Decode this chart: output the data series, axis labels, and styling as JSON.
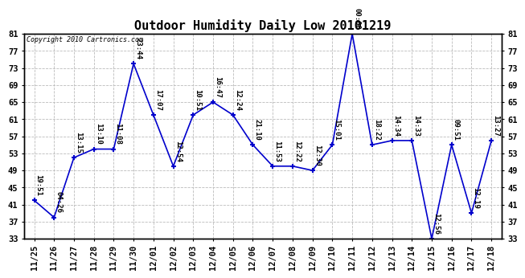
{
  "title": "Outdoor Humidity Daily Low 20101219",
  "copyright": "Copyright 2010 Cartronics.com",
  "x_labels": [
    "11/25",
    "11/26",
    "11/27",
    "11/28",
    "11/29",
    "11/30",
    "12/01",
    "12/02",
    "12/03",
    "12/04",
    "12/05",
    "12/06",
    "12/07",
    "12/08",
    "12/09",
    "12/10",
    "12/11",
    "12/12",
    "12/13",
    "12/14",
    "12/15",
    "12/16",
    "12/17",
    "12/18"
  ],
  "y_values": [
    42,
    38,
    52,
    54,
    54,
    74,
    62,
    50,
    62,
    65,
    62,
    55,
    50,
    50,
    49,
    55,
    81,
    55,
    56,
    56,
    33,
    55,
    39,
    56
  ],
  "point_labels": [
    "19:51",
    "04:26",
    "13:15",
    "13:10",
    "11:08",
    "23:44",
    "17:07",
    "12:54",
    "10:51",
    "16:47",
    "12:24",
    "21:10",
    "11:53",
    "12:22",
    "12:30",
    "15:01",
    "00:00",
    "18:22",
    "14:34",
    "14:33",
    "12:56",
    "09:51",
    "12:19",
    "13:27"
  ],
  "line_color": "#0000cc",
  "marker_color": "#0000cc",
  "background_color": "#ffffff",
  "grid_color": "#bbbbbb",
  "ylim_min": 33,
  "ylim_max": 81,
  "yticks": [
    33,
    37,
    41,
    45,
    49,
    53,
    57,
    61,
    65,
    69,
    73,
    77,
    81
  ],
  "title_fontsize": 11,
  "label_fontsize": 6.5,
  "tick_fontsize": 7.5
}
